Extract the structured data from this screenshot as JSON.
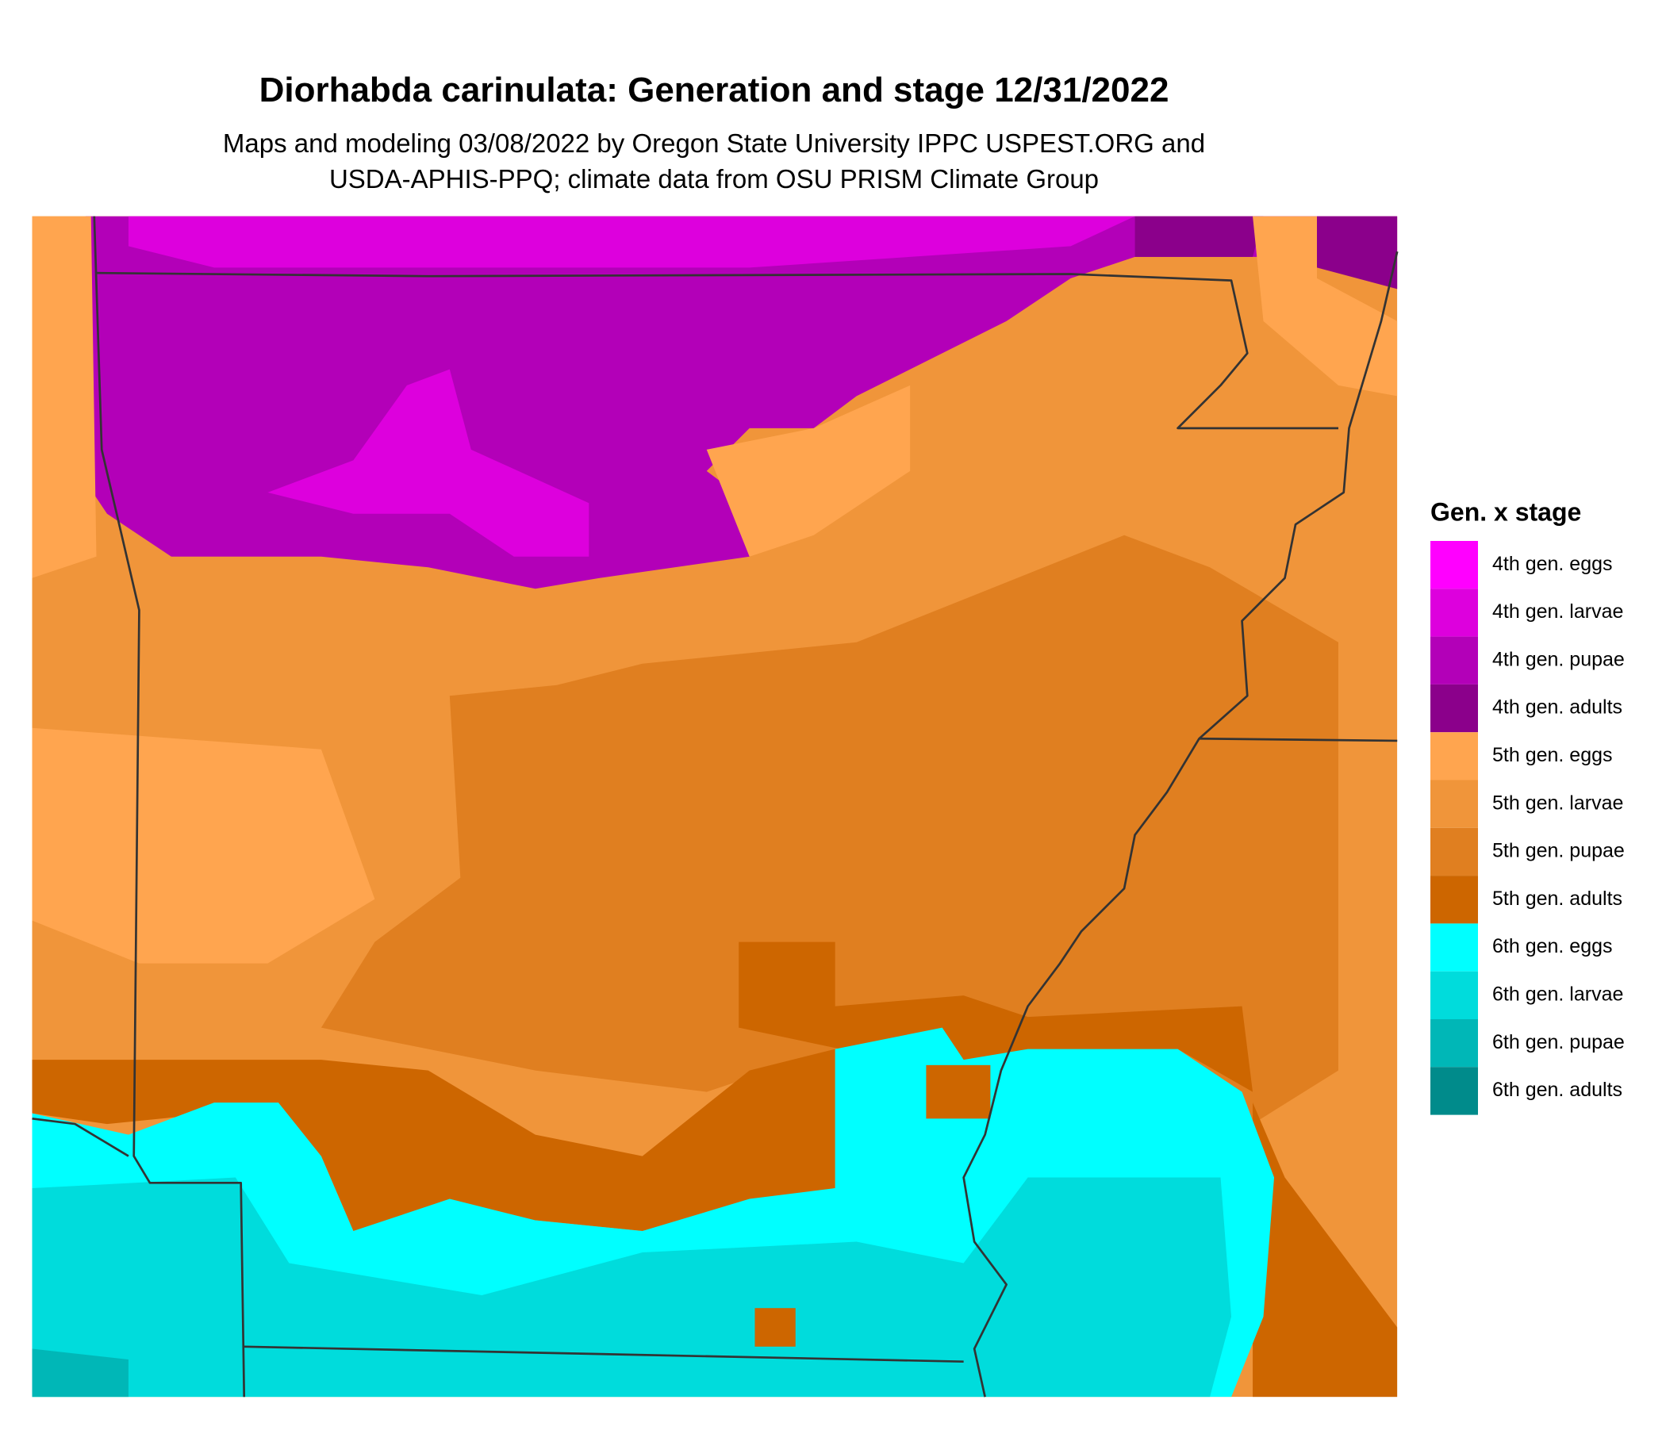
{
  "title": "Diorhabda carinulata: Generation and stage 12/31/2022",
  "subtitle": [
    "Maps and modeling 03/08/2022 by Oregon State University IPPC USPEST.ORG and",
    "USDA-APHIS-PPQ; climate data from OSU PRISM Climate Group"
  ],
  "legend": {
    "title": "Gen. x stage",
    "items": [
      {
        "label": "4th gen. eggs",
        "color": "#ff00ff"
      },
      {
        "label": "4th gen. larvae",
        "color": "#dd00dd"
      },
      {
        "label": "4th gen. pupae",
        "color": "#b300b8"
      },
      {
        "label": "4th gen. adults",
        "color": "#8b008b"
      },
      {
        "label": "5th gen. eggs",
        "color": "#ffa54f"
      },
      {
        "label": "5th gen. larvae",
        "color": "#f0953a"
      },
      {
        "label": "5th gen. pupae",
        "color": "#e07f20"
      },
      {
        "label": "5th gen. adults",
        "color": "#cd6600"
      },
      {
        "label": "6th gen. eggs",
        "color": "#00ffff"
      },
      {
        "label": "6th gen. larvae",
        "color": "#00dcdc"
      },
      {
        "label": "6th gen. pupae",
        "color": "#00b7b7"
      },
      {
        "label": "6th gen. adults",
        "color": "#008b8b"
      }
    ]
  }
}
